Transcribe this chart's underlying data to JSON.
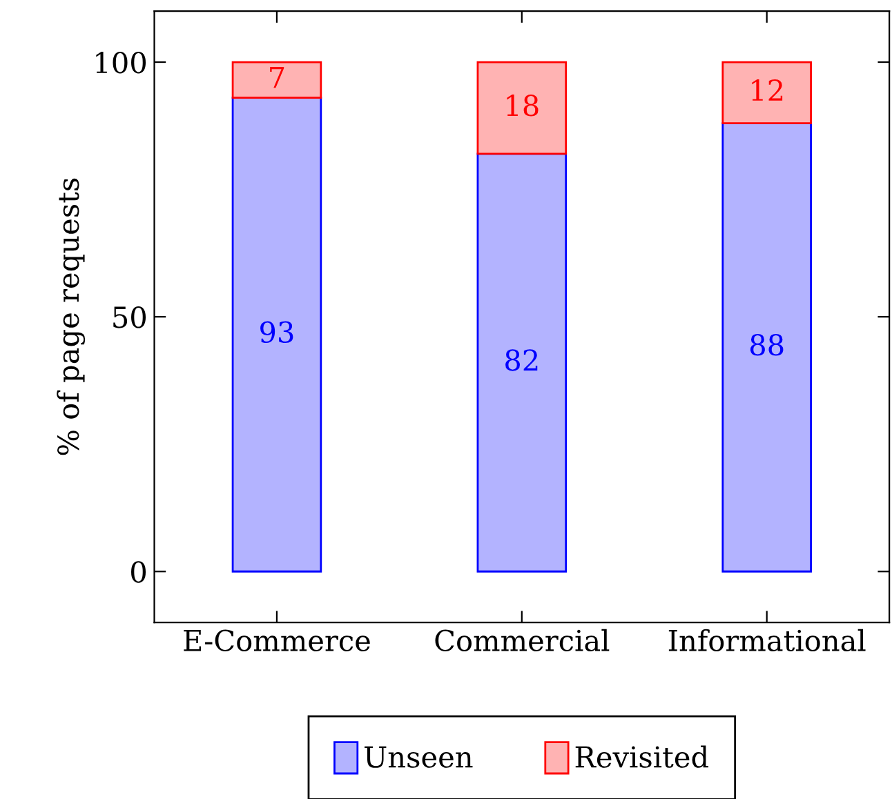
{
  "chart_data": {
    "type": "bar",
    "stacked": true,
    "ylabel": "% of page requests",
    "categories": [
      "E-Commerce",
      "Commercial",
      "Informational"
    ],
    "series": [
      {
        "name": "Unseen",
        "color": "#b3b3ff",
        "values": [
          93,
          82,
          88
        ]
      },
      {
        "name": "Revisited",
        "color": "#ffb3b3",
        "values": [
          7,
          18,
          12
        ]
      }
    ],
    "ylim": [
      -10,
      110
    ],
    "yticks": [
      0,
      50,
      100
    ],
    "data_labels": true,
    "legend": "bottom",
    "grid": false
  }
}
